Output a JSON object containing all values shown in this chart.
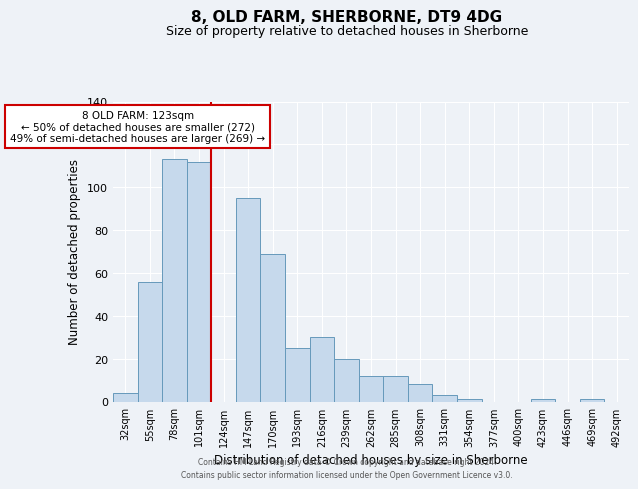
{
  "title": "8, OLD FARM, SHERBORNE, DT9 4DG",
  "subtitle": "Size of property relative to detached houses in Sherborne",
  "xlabel": "Distribution of detached houses by size in Sherborne",
  "ylabel": "Number of detached properties",
  "bar_labels": [
    "32sqm",
    "55sqm",
    "78sqm",
    "101sqm",
    "124sqm",
    "147sqm",
    "170sqm",
    "193sqm",
    "216sqm",
    "239sqm",
    "262sqm",
    "285sqm",
    "308sqm",
    "331sqm",
    "354sqm",
    "377sqm",
    "400sqm",
    "423sqm",
    "446sqm",
    "469sqm",
    "492sqm"
  ],
  "bar_values": [
    4,
    56,
    113,
    112,
    0,
    95,
    69,
    25,
    30,
    20,
    12,
    12,
    8,
    3,
    1,
    0,
    0,
    1,
    0,
    1,
    0
  ],
  "bar_color": "#c6d9ec",
  "bar_edge_color": "#6699bb",
  "ylim": [
    0,
    140
  ],
  "yticks": [
    0,
    20,
    40,
    60,
    80,
    100,
    120,
    140
  ],
  "vline_color": "#cc0000",
  "annotation_title": "8 OLD FARM: 123sqm",
  "annotation_line1": "← 50% of detached houses are smaller (272)",
  "annotation_line2": "49% of semi-detached houses are larger (269) →",
  "annotation_box_color": "#cc0000",
  "footer_line1": "Contains HM Land Registry data © Crown copyright and database right 2024.",
  "footer_line2": "Contains public sector information licensed under the Open Government Licence v3.0.",
  "background_color": "#eef2f7",
  "plot_bg_color": "#eef2f7",
  "grid_color": "#ffffff"
}
